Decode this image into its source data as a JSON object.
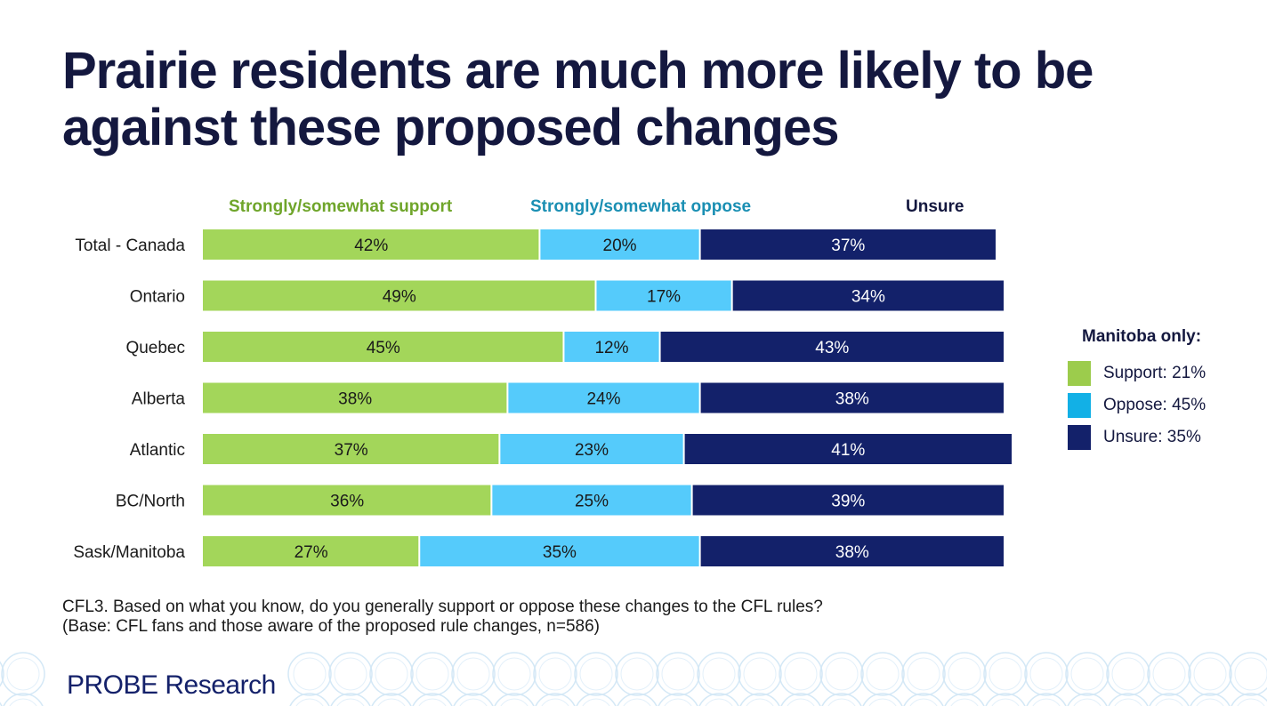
{
  "title": "Prairie residents are much more likely to be against these proposed changes",
  "chart_data": {
    "type": "bar",
    "orientation": "horizontal",
    "stacked": true,
    "categories": [
      "Total - Canada",
      "Ontario",
      "Quebec",
      "Alberta",
      "Atlantic",
      "BC/North",
      "Sask/Manitoba"
    ],
    "series": [
      {
        "name": "Strongly/somewhat support",
        "color": "#a3d65a",
        "header_color": "#6fa52a",
        "values": [
          42,
          49,
          45,
          38,
          37,
          36,
          27
        ]
      },
      {
        "name": "Strongly/somewhat oppose",
        "color": "#55cbfb",
        "header_color": "#1a8fb3",
        "values": [
          20,
          17,
          12,
          24,
          23,
          25,
          35
        ]
      },
      {
        "name": "Unsure",
        "color": "#13216a",
        "header_color": "#14183f",
        "values": [
          37,
          34,
          43,
          38,
          41,
          39,
          38
        ]
      }
    ],
    "value_suffix": "%",
    "xlim": [
      0,
      100
    ],
    "grid": false
  },
  "legend": {
    "title": "Manitoba only:",
    "items": [
      {
        "label": "Support: 21%",
        "color": "#9ccc4c"
      },
      {
        "label": "Oppose: 45%",
        "color": "#12b0e6"
      },
      {
        "label": "Unsure: 35%",
        "color": "#13216a"
      }
    ]
  },
  "note": "CFL3. Based on what you know, do you generally support or oppose these changes to the CFL rules? (Base: CFL fans and those aware of the proposed rule changes, n=586)",
  "logo": "PROBE Research"
}
